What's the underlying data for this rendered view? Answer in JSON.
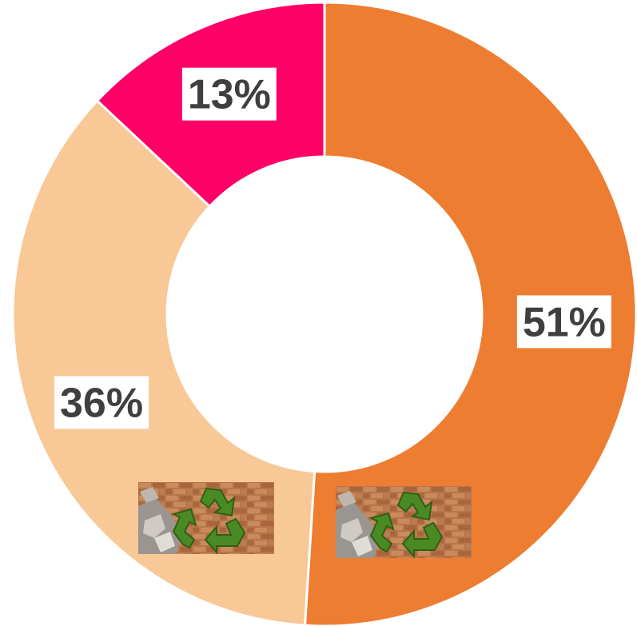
{
  "chart_data": {
    "type": "pie",
    "variant": "donut",
    "title": "",
    "slices": [
      {
        "label": "51%",
        "value": 51,
        "color": "#ED7D31"
      },
      {
        "label": "36%",
        "value": 36,
        "color": "#F8C896"
      },
      {
        "label": "13%",
        "value": 13,
        "color": "#FF0066"
      }
    ],
    "start_angle_deg": 0,
    "direction": "clockwise",
    "legend": "none",
    "decorations": [
      {
        "icon": "recycling-bricks-image",
        "on_slice": "51%"
      },
      {
        "icon": "recycling-bricks-image",
        "on_slice": "36%"
      }
    ]
  }
}
